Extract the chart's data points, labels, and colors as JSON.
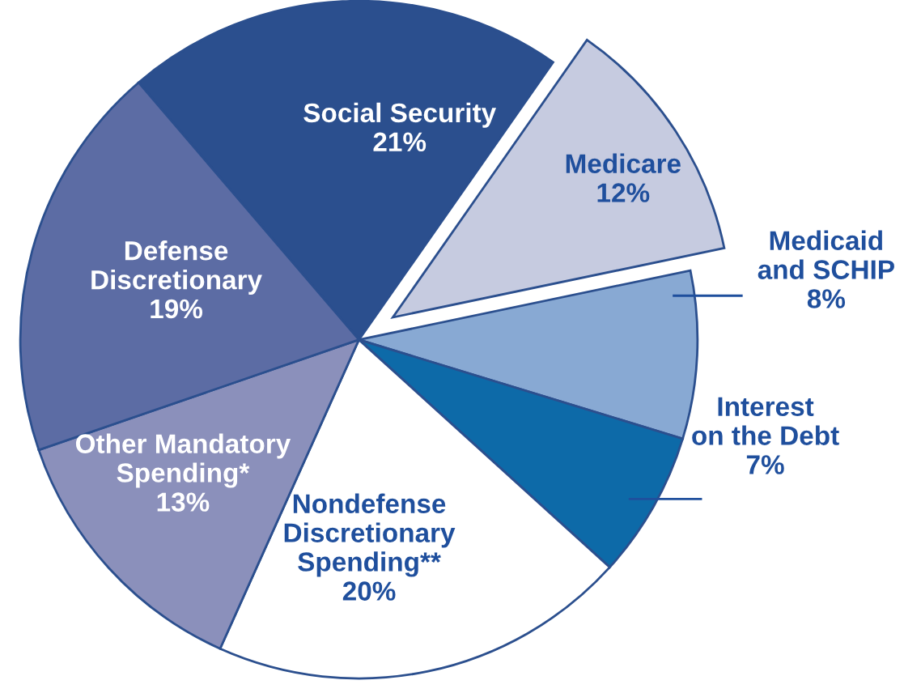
{
  "chart_data": {
    "type": "pie",
    "categories": [
      "Social Security",
      "Medicare",
      "Medicaid\nand SCHIP",
      "Interest\non the Debt",
      "Nondefense\nDiscretionary\nSpending**",
      "Other Mandatory\nSpending*",
      "Defense\nDiscretionary"
    ],
    "values": [
      21,
      12,
      8,
      7,
      20,
      13,
      19
    ],
    "value_labels": [
      "21%",
      "12%",
      "8%",
      "7%",
      "20%",
      "13%",
      "19%"
    ],
    "colors": [
      "#2b4f8e",
      "#c6cbe0",
      "#88a9d3",
      "#0d6aa8",
      "#ffffff",
      "#8b90bb",
      "#5c6ca4"
    ],
    "legend": false
  }
}
